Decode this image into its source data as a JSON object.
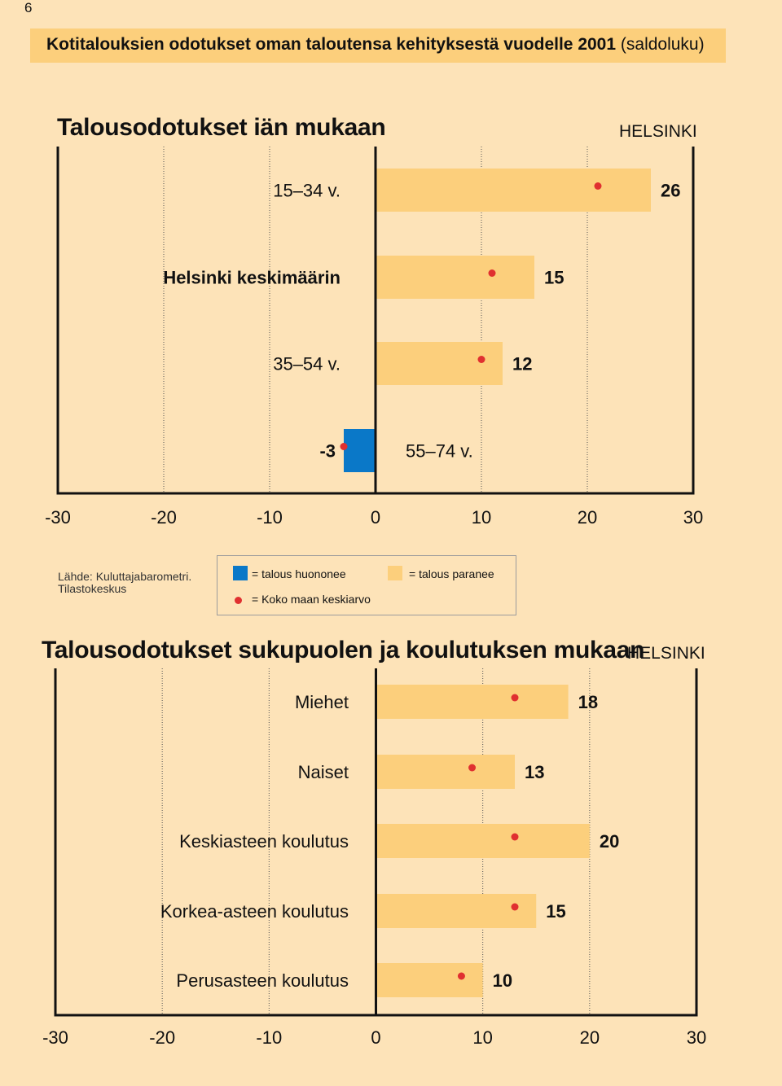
{
  "page_number": "6",
  "banner": {
    "title": "Kotitalouksien odotukset oman taloutensa kehityksestä vuodelle 2001",
    "subtitle": "(saldoluku)"
  },
  "legend": {
    "decline_label": "= talous huononee",
    "improve_label": "= talous paranee",
    "average_label": "= Koko maan keskiarvo",
    "colors": {
      "decline": "#0a78c8",
      "improve": "#fccf7c",
      "average_dot": "#e03030"
    }
  },
  "source": {
    "line1": "Lähde: Kuluttajabarometri.",
    "line2": "Tilastokeskus"
  },
  "chart_data": [
    {
      "type": "bar",
      "orientation": "horizontal",
      "title": "Talousodotukset iän mukaan",
      "region": "HELSINKI",
      "categories": [
        "15–34 v.",
        "Helsinki keskimäärin",
        "35–54 v.",
        "55–74 v."
      ],
      "values": [
        26,
        15,
        12,
        -3
      ],
      "value_labels": [
        "26",
        "15",
        "12",
        "-3"
      ],
      "national_average": [
        21,
        11,
        10,
        -3
      ],
      "xlim": [
        -30,
        30
      ],
      "xticks": [
        "-30",
        "-20",
        "-10",
        "0",
        "10",
        "20",
        "30"
      ],
      "grid": "dotted vertical"
    },
    {
      "type": "bar",
      "orientation": "horizontal",
      "title": "Talousodotukset sukupuolen ja koulutuksen mukaan",
      "region": "HELSINKI",
      "categories": [
        "Miehet",
        "Naiset",
        "Keskiasteen koulutus",
        "Korkea-asteen koulutus",
        "Perusasteen koulutus"
      ],
      "values": [
        18,
        13,
        20,
        15,
        10
      ],
      "value_labels": [
        "18",
        "13",
        "20",
        "15",
        "10"
      ],
      "national_average": [
        13,
        9,
        13,
        13,
        8
      ],
      "xlim": [
        -30,
        30
      ],
      "xticks": [
        "-30",
        "-20",
        "-10",
        "0",
        "10",
        "20",
        "30"
      ],
      "grid": "dotted vertical"
    }
  ]
}
